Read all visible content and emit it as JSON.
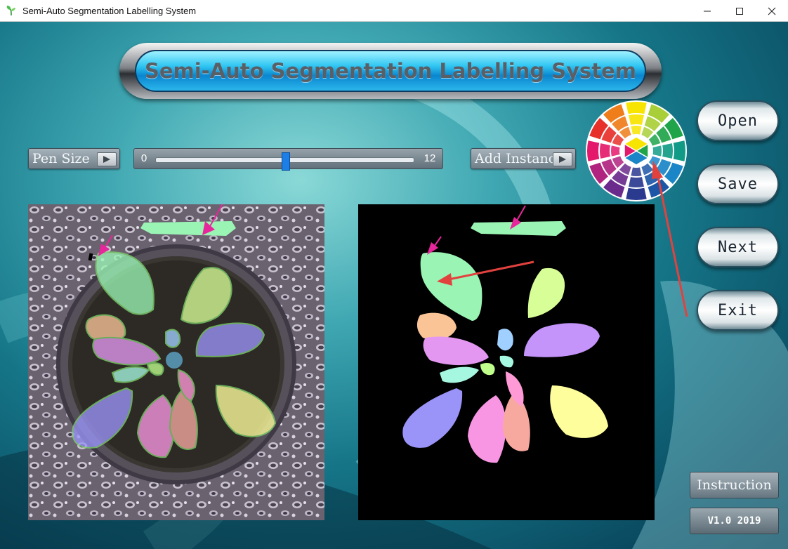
{
  "window": {
    "title": "Semi-Auto Segmentation Labelling System",
    "controls": [
      "minimize",
      "maximize",
      "close"
    ]
  },
  "banner": {
    "title": "Semi-Auto Segmentation Labelling System"
  },
  "toolbar": {
    "pen_size_label": "Pen Size",
    "slider_min": "0",
    "slider_max": "12",
    "slider_value": 6,
    "add_instance_label": "Add Instance"
  },
  "side_buttons": {
    "open": "Open",
    "save": "Save",
    "next": "Next",
    "exit": "Exit"
  },
  "footer": {
    "instruction": "Instruction",
    "version": "V1.0 2019"
  },
  "icons": {
    "app": "plant-sprout-icon",
    "play": "play-triangle-icon",
    "wheel": "color-wheel-icon"
  },
  "colors": {
    "annotation_arrow": "#e7269b",
    "pointer_arrow": "#e2423e",
    "slider_thumb": "#1d7ee6",
    "leaf_colors": [
      "#9af5b4",
      "#fac497",
      "#e497f1",
      "#a0d0ff",
      "#a6f7e0",
      "#9a94f8",
      "#f996e3",
      "#f7a9a0",
      "#fefe9d",
      "#d8ff97",
      "#c494fb",
      "#c0ff8c",
      "#ff9ad6"
    ]
  }
}
